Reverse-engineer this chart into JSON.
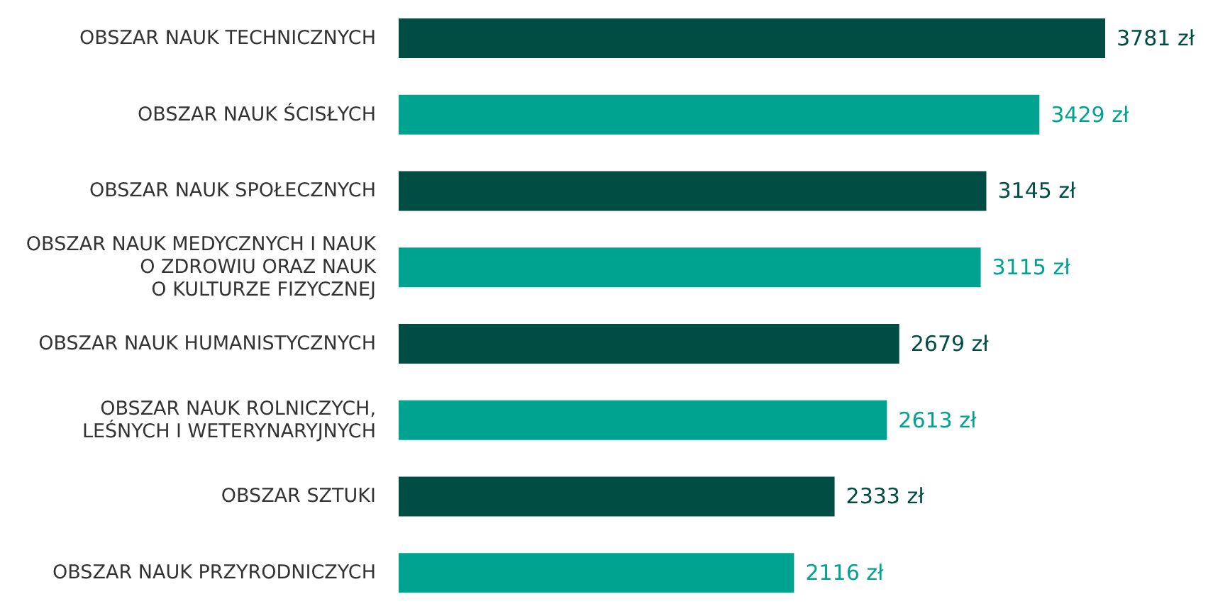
{
  "chart_data": {
    "type": "bar",
    "orientation": "horizontal",
    "categories": [
      "OBSZAR NAUK TECHNICZNYCH",
      "OBSZAR NAUK ŚCISŁYCH",
      "OBSZAR NAUK SPOŁECZNYCH",
      "OBSZAR NAUK MEDYCZNYCH I NAUK\nO ZDROWIU ORAZ NAUK\nO KULTURZE FIZYCZNEJ",
      "OBSZAR NAUK HUMANISTYCZNYCH",
      "OBSZAR NAUK ROLNICZYCH,\nLEŚNYCH I WETERYNARYJNYCH",
      "OBSZAR SZTUKI",
      "OBSZAR NAUK PRZYRODNICZYCH"
    ],
    "values": [
      3781,
      3429,
      3145,
      3115,
      2679,
      2613,
      2333,
      2116
    ],
    "colors": [
      "#004d43",
      "#00a390",
      "#004d43",
      "#00a390",
      "#004d43",
      "#00a390",
      "#004d43",
      "#00a390"
    ],
    "value_labels": [
      "3781 zł",
      "3429 zł",
      "3145 zł",
      "3115 zł",
      "2679 zł",
      "2613 zł",
      "2333 zł",
      "2116 zł"
    ]
  }
}
